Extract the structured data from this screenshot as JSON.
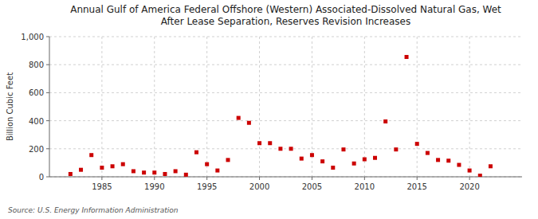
{
  "chart_data": {
    "type": "scatter",
    "title": "Annual Gulf of America Federal Offshore (Western) Associated-Dissolved Natural Gas, Wet\nAfter Lease Separation, Reserves Revision Increases",
    "y_label": "Billion Cubic Feet",
    "annotations": [
      "Source: U.S. Energy Information Administration"
    ],
    "x": [
      1982,
      1983,
      1984,
      1985,
      1986,
      1987,
      1988,
      1989,
      1990,
      1991,
      1992,
      1993,
      1994,
      1995,
      1996,
      1997,
      1998,
      1999,
      2000,
      2001,
      2002,
      2003,
      2004,
      2005,
      2006,
      2007,
      2008,
      2009,
      2010,
      2011,
      2012,
      2013,
      2014,
      2015,
      2016,
      2017,
      2018,
      2019,
      2020,
      2021,
      2022
    ],
    "values": [
      20,
      50,
      155,
      65,
      75,
      90,
      40,
      30,
      30,
      20,
      40,
      15,
      175,
      90,
      45,
      120,
      420,
      385,
      240,
      240,
      200,
      200,
      130,
      155,
      110,
      65,
      195,
      95,
      125,
      135,
      395,
      195,
      855,
      235,
      170,
      120,
      115,
      85,
      45,
      8,
      75
    ],
    "color": "#cc0000",
    "marker": "square",
    "xlim": [
      1980,
      2025
    ],
    "xticks": [
      1985,
      1990,
      1995,
      2000,
      2005,
      2010,
      2015,
      2020
    ],
    "ylim": [
      0,
      1000
    ],
    "yticks": [
      0,
      200,
      400,
      600,
      800,
      {
        "value": 1000,
        "label": "1,000"
      }
    ],
    "grid": true
  }
}
